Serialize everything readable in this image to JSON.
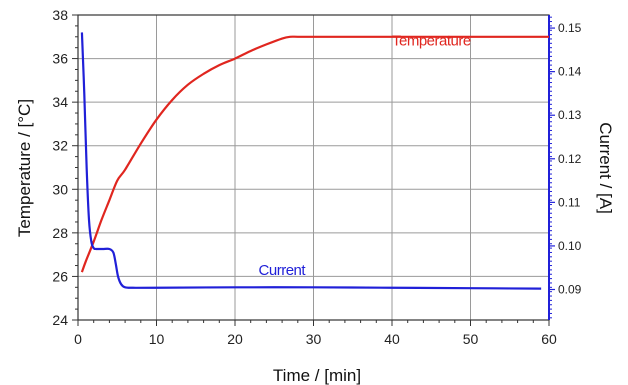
{
  "chart_data": {
    "type": "line",
    "xlabel": "Time / [min]",
    "ylabel_left": "Temperature / [°C]",
    "ylabel_right": "Current / [A]",
    "xlim": [
      0,
      60
    ],
    "ylim_left": [
      24,
      38
    ],
    "ylim_right": [
      0.083,
      0.153
    ],
    "x_ticks": [
      0,
      10,
      20,
      30,
      40,
      50,
      60
    ],
    "x_tick_labels": [
      "0",
      "10",
      "20",
      "30",
      "40",
      "50",
      "60"
    ],
    "y_left_ticks": [
      24,
      26,
      28,
      30,
      32,
      34,
      36,
      38
    ],
    "y_left_tick_labels": [
      "24",
      "26",
      "28",
      "30",
      "32",
      "34",
      "36",
      "38"
    ],
    "y_right_ticks": [
      0.09,
      0.1,
      0.11,
      0.12,
      0.13,
      0.14,
      0.15
    ],
    "y_right_tick_labels": [
      "0.09",
      "0.10",
      "0.11",
      "0.12",
      "0.13",
      "0.14",
      "0.15"
    ],
    "grid": true,
    "series": [
      {
        "name": "Temperature",
        "axis": "left",
        "color": "#e0261f",
        "x": [
          0.5,
          1,
          2,
          3,
          4,
          5,
          6,
          8,
          10,
          12,
          14,
          16,
          18,
          20,
          22,
          24,
          26,
          27,
          28,
          30,
          35,
          40,
          45,
          50,
          55,
          60
        ],
        "y": [
          26.2,
          26.7,
          27.6,
          28.6,
          29.5,
          30.4,
          30.9,
          32.1,
          33.2,
          34.1,
          34.8,
          35.3,
          35.7,
          36.0,
          36.35,
          36.65,
          36.92,
          37.0,
          37.0,
          37.0,
          37.0,
          37.0,
          37.0,
          37.0,
          37.0,
          37.0
        ]
      },
      {
        "name": "Current",
        "axis": "right",
        "color": "#2020d8",
        "x": [
          0.5,
          0.8,
          1.1,
          1.4,
          1.7,
          2.0,
          2.3,
          2.7,
          3.2,
          4.0,
          4.5,
          4.8,
          5.1,
          5.5,
          6,
          7,
          10,
          20,
          30,
          40,
          50,
          59
        ],
        "y": [
          0.149,
          0.135,
          0.118,
          0.106,
          0.101,
          0.0995,
          0.0993,
          0.0993,
          0.0993,
          0.0993,
          0.0985,
          0.096,
          0.093,
          0.0912,
          0.0905,
          0.0904,
          0.0904,
          0.0905,
          0.0905,
          0.0904,
          0.0903,
          0.0902
        ]
      }
    ],
    "annotations": [
      {
        "text": "Temperature",
        "series": "Temperature",
        "x": 40,
        "y": 36.6
      },
      {
        "text": "Current",
        "series": "Current",
        "x": 23,
        "y": 0.0933
      }
    ]
  }
}
